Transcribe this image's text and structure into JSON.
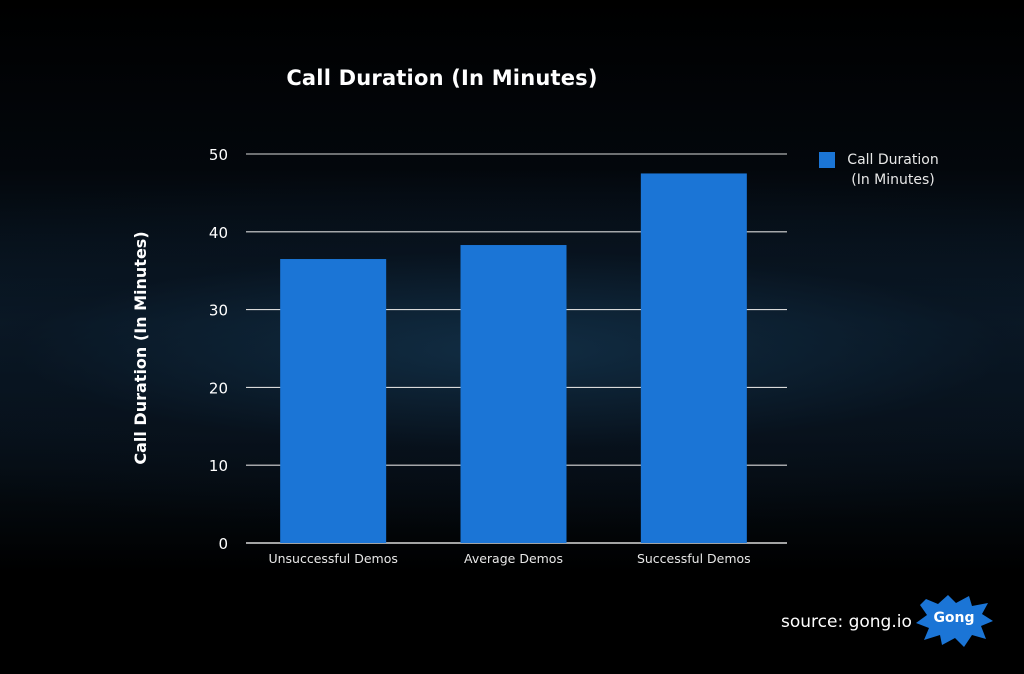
{
  "chart_data": {
    "type": "bar",
    "title": "Call Duration (In Minutes)",
    "ylabel": "Call Duration (In Minutes)",
    "xlabel": "",
    "categories": [
      "Unsuccessful Demos",
      "Average Demos",
      "Successful Demos"
    ],
    "series": [
      {
        "name": "Call Duration\n(In Minutes)",
        "values": [
          36.5,
          38.3,
          47.5
        ],
        "color": "#1b75d6"
      }
    ],
    "ylim": [
      0,
      50
    ],
    "yticks": [
      "0",
      "10",
      "20",
      "30",
      "40",
      "50"
    ],
    "grid": true,
    "legend_position": "right-top"
  },
  "footer": {
    "source": "source: gong.io",
    "logo_text": "Gong",
    "logo_color": "#1b75d6"
  }
}
